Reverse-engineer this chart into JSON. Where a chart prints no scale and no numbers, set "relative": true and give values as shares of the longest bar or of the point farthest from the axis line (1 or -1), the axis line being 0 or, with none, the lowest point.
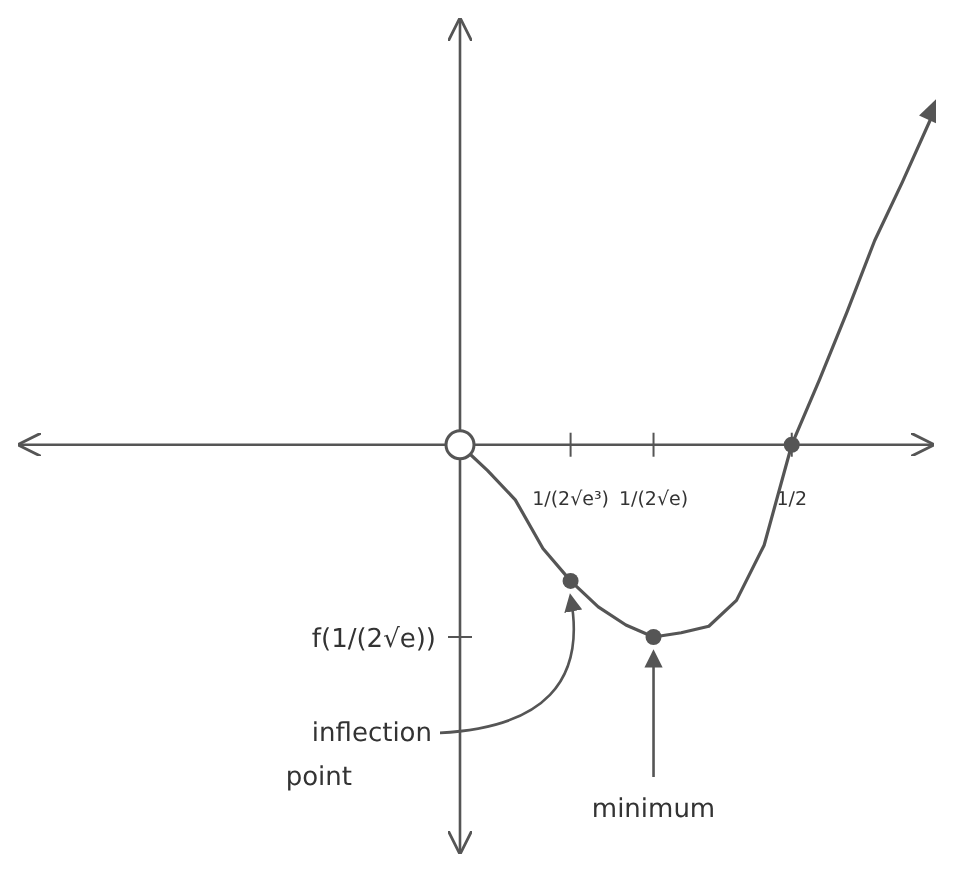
{
  "chart_data": {
    "type": "line",
    "relative": true,
    "line_style": "solid",
    "categories": [
      null,
      null,
      null,
      null,
      "1/(2√e³)",
      null,
      null,
      "1/(2√e)",
      null,
      null,
      null,
      null,
      "1/2",
      null,
      null,
      null,
      null,
      null
    ],
    "series": [
      {
        "color": "#555555",
        "values": [
          0,
          -0.08,
          -0.17,
          -0.32,
          -0.42,
          -0.5,
          -0.556,
          -0.593,
          -0.58,
          -0.56,
          -0.48,
          -0.31,
          0,
          0.2,
          0.41,
          0.63,
          0.81,
          1
        ]
      },
      {
        "type": "scatter",
        "color": "#555555",
        "marker": "circle",
        "x": [
          "1/(2√e³)",
          "1/(2√e)",
          "1/2"
        ],
        "values": [
          -0.42,
          -0.593,
          0
        ]
      }
    ],
    "annotations": [
      "f(1/(2√e))",
      {
        "text": "inflection point",
        "x": "1/(2√e³)",
        "y": -0.42
      },
      {
        "text": "minimum",
        "x": "1/(2√e)",
        "y": -0.593
      }
    ]
  }
}
